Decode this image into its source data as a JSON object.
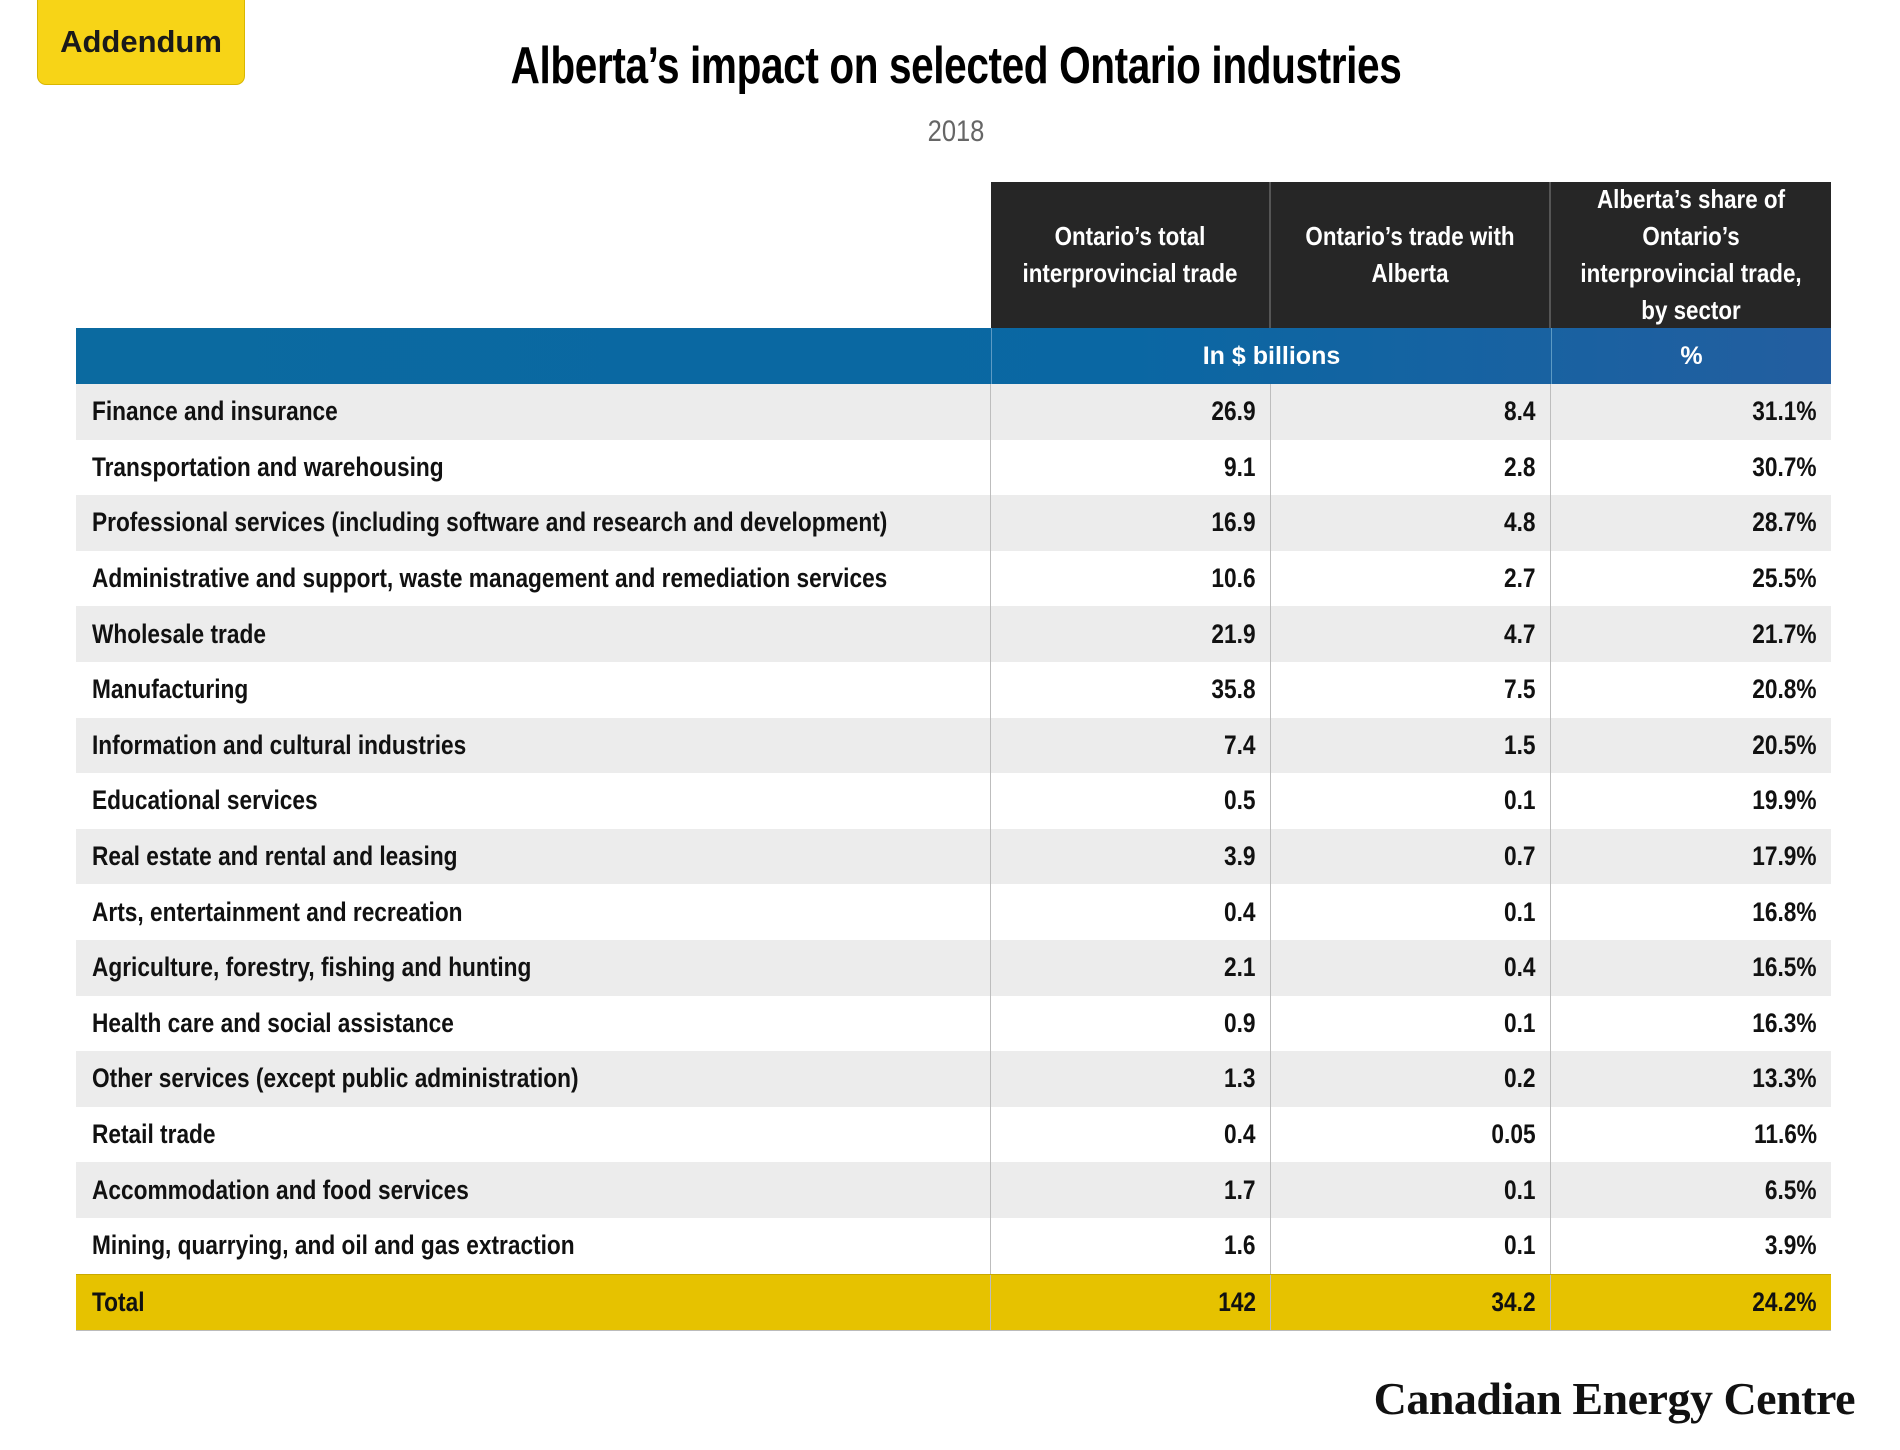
{
  "badge": "Addendum",
  "chart_data": {
    "type": "table",
    "title": "Alberta’s impact on selected Ontario industries",
    "subtitle": "2018",
    "columns": [
      "Ontario’s total interprovincial trade",
      "Ontario’s trade with Alberta",
      "Alberta’s share of Ontario’s interprovincial trade, by sector"
    ],
    "units": {
      "billions": "In $ billions",
      "percent": "%"
    },
    "rows": [
      {
        "sector": "Finance and insurance",
        "total_trade": "26.9",
        "trade_with_alberta": "8.4",
        "alberta_share": "31.1%"
      },
      {
        "sector": "Transportation and warehousing",
        "total_trade": "9.1",
        "trade_with_alberta": "2.8",
        "alberta_share": "30.7%"
      },
      {
        "sector": "Professional services (including software and research and development)",
        "total_trade": "16.9",
        "trade_with_alberta": "4.8",
        "alberta_share": "28.7%"
      },
      {
        "sector": "Administrative and support, waste management and remediation services",
        "total_trade": "10.6",
        "trade_with_alberta": "2.7",
        "alberta_share": "25.5%"
      },
      {
        "sector": "Wholesale trade",
        "total_trade": "21.9",
        "trade_with_alberta": "4.7",
        "alberta_share": "21.7%"
      },
      {
        "sector": "Manufacturing",
        "total_trade": "35.8",
        "trade_with_alberta": "7.5",
        "alberta_share": "20.8%"
      },
      {
        "sector": "Information and cultural industries",
        "total_trade": "7.4",
        "trade_with_alberta": "1.5",
        "alberta_share": "20.5%"
      },
      {
        "sector": "Educational services",
        "total_trade": "0.5",
        "trade_with_alberta": "0.1",
        "alberta_share": "19.9%"
      },
      {
        "sector": "Real estate and rental and leasing",
        "total_trade": "3.9",
        "trade_with_alberta": "0.7",
        "alberta_share": "17.9%"
      },
      {
        "sector": "Arts, entertainment and recreation",
        "total_trade": "0.4",
        "trade_with_alberta": "0.1",
        "alberta_share": "16.8%"
      },
      {
        "sector": "Agriculture, forestry, fishing and hunting",
        "total_trade": "2.1",
        "trade_with_alberta": "0.4",
        "alberta_share": "16.5%"
      },
      {
        "sector": "Health care and social assistance",
        "total_trade": "0.9",
        "trade_with_alberta": "0.1",
        "alberta_share": "16.3%"
      },
      {
        "sector": "Other services (except public administration)",
        "total_trade": "1.3",
        "trade_with_alberta": "0.2",
        "alberta_share": "13.3%"
      },
      {
        "sector": "Retail trade",
        "total_trade": "0.4",
        "trade_with_alberta": "0.05",
        "alberta_share": "11.6%"
      },
      {
        "sector": "Accommodation and food services",
        "total_trade": "1.7",
        "trade_with_alberta": "0.1",
        "alberta_share": "6.5%"
      },
      {
        "sector": "Mining, quarrying, and oil and gas extraction",
        "total_trade": "1.6",
        "trade_with_alberta": "0.1",
        "alberta_share": "3.9%"
      }
    ],
    "total": {
      "sector": "Total",
      "total_trade": "142",
      "trade_with_alberta": "34.2",
      "alberta_share": "24.2%"
    }
  },
  "logo": "Canadian Energy Centre",
  "colors": {
    "header": "#262626",
    "unit_bar": "#0a67a3",
    "row_alt": "#ececec",
    "total_row": "#e6c200",
    "badge": "#f7d417"
  }
}
